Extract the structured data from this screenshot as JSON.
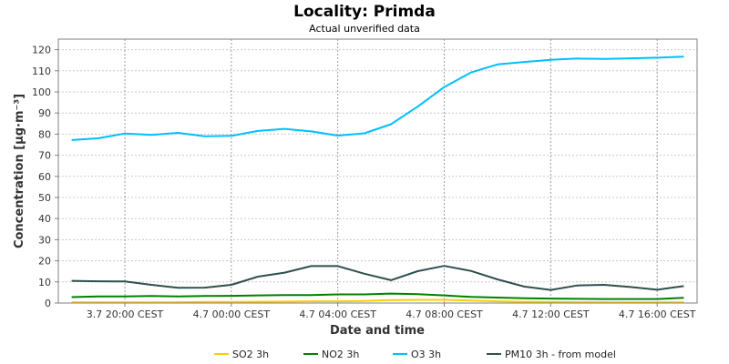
{
  "chart_data": {
    "type": "line",
    "title": "Locality: Primda",
    "subtitle": "Actual unverified data",
    "xlabel": "Date and time",
    "ylabel": "Concentration [µg·m⁻³]",
    "ylim": [
      0,
      125
    ],
    "yticks": [
      0,
      10,
      20,
      30,
      40,
      50,
      60,
      70,
      80,
      90,
      100,
      110,
      120
    ],
    "x_tick_labels": [
      "3.7 20:00 CEST",
      "4.7 00:00 CEST",
      "4.7 04:00 CEST",
      "4.7 08:00 CEST",
      "4.7 12:00 CEST",
      "4.7 16:00 CEST"
    ],
    "x_hours": [
      18,
      19,
      20,
      21,
      22,
      23,
      24,
      25,
      26,
      27,
      28,
      29,
      30,
      31,
      32,
      33,
      34,
      35,
      36,
      37,
      38,
      39,
      40,
      41
    ],
    "xlim_hours": [
      17.5,
      41.5
    ],
    "x_tick_hours": [
      20,
      24,
      28,
      32,
      36,
      40
    ],
    "grid": true,
    "legend_position": "bottom",
    "series": [
      {
        "name": "SO2 3h",
        "color": "#ffcc00",
        "values": [
          0.3,
          0.3,
          0.3,
          0.3,
          0.4,
          0.5,
          0.5,
          0.6,
          0.7,
          0.8,
          0.8,
          1.0,
          1.4,
          1.5,
          1.5,
          1.2,
          0.8,
          0.6,
          0.5,
          0.4,
          0.4,
          0.3,
          0.3,
          0.3
        ]
      },
      {
        "name": "NO2 3h",
        "color": "#008000",
        "values": [
          2.8,
          3.1,
          3.1,
          3.3,
          3.1,
          3.3,
          3.4,
          3.6,
          3.8,
          3.8,
          4.1,
          4.1,
          4.5,
          4.2,
          3.6,
          2.9,
          2.6,
          2.3,
          2.1,
          2.0,
          1.9,
          1.9,
          1.9,
          2.5
        ]
      },
      {
        "name": "O3 3h",
        "color": "#00bfff",
        "values": [
          77.2,
          78.0,
          80.3,
          79.6,
          80.6,
          79.0,
          79.2,
          81.5,
          82.5,
          81.3,
          79.3,
          80.4,
          84.7,
          93.0,
          102.3,
          109.2,
          113.0,
          114.2,
          115.2,
          115.8,
          115.6,
          115.9,
          116.2,
          116.7
        ]
      },
      {
        "name": "PM10 3h - from model",
        "color": "#2f4f4f",
        "values": [
          10.5,
          10.3,
          10.2,
          8.6,
          7.2,
          7.3,
          8.6,
          12.5,
          14.4,
          17.5,
          17.5,
          13.9,
          10.8,
          15.1,
          17.6,
          15.2,
          11.2,
          7.8,
          6.2,
          8.3,
          8.6,
          7.6,
          6.3,
          8.0
        ]
      }
    ]
  }
}
